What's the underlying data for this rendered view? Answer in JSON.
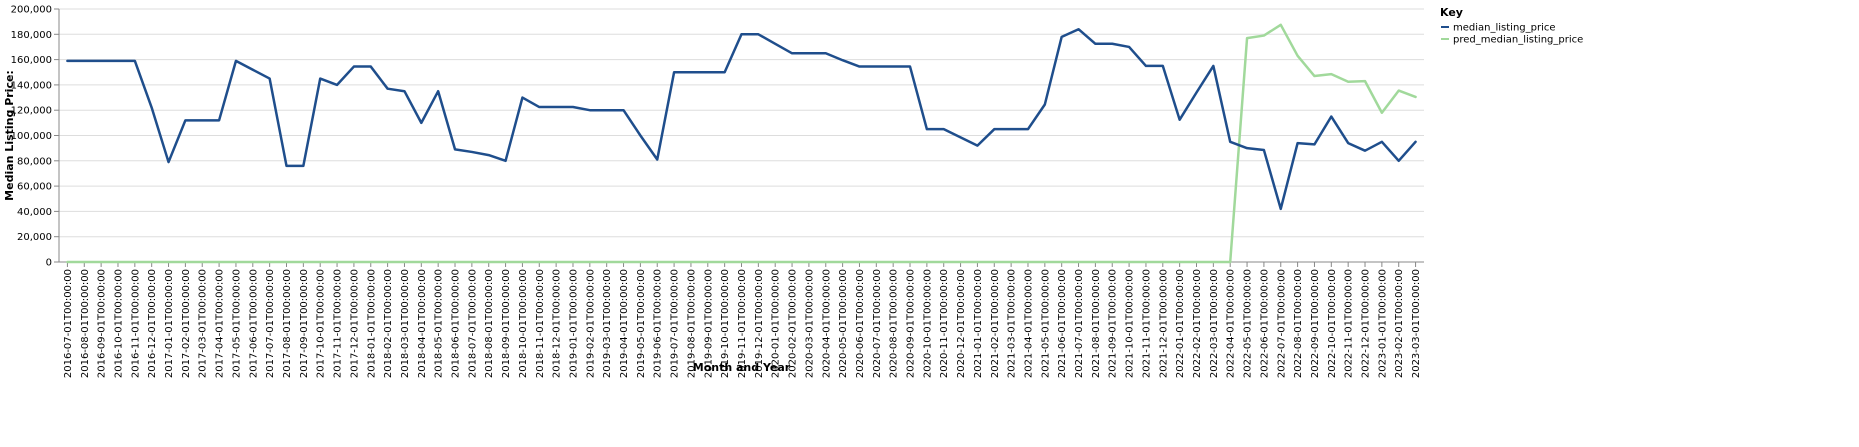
{
  "chart_data": {
    "type": "line",
    "xlabel": "Month and Year",
    "ylabel": "Median Listing Price:",
    "ylim": [
      0,
      200000
    ],
    "yticks": [
      0,
      20000,
      40000,
      60000,
      80000,
      100000,
      120000,
      140000,
      160000,
      180000,
      200000
    ],
    "ytick_labels": [
      "0",
      "20,000",
      "40,000",
      "60,000",
      "80,000",
      "100,000",
      "120,000",
      "140,000",
      "160,000",
      "180,000",
      "200,000"
    ],
    "grid": true,
    "legend": {
      "title": "Key",
      "position": "top-right"
    },
    "x": [
      "2016-07-01T00:00:00",
      "2016-08-01T00:00:00",
      "2016-09-01T00:00:00",
      "2016-10-01T00:00:00",
      "2016-11-01T00:00:00",
      "2016-12-01T00:00:00",
      "2017-01-01T00:00:00",
      "2017-02-01T00:00:00",
      "2017-03-01T00:00:00",
      "2017-04-01T00:00:00",
      "2017-05-01T00:00:00",
      "2017-06-01T00:00:00",
      "2017-07-01T00:00:00",
      "2017-08-01T00:00:00",
      "2017-09-01T00:00:00",
      "2017-10-01T00:00:00",
      "2017-11-01T00:00:00",
      "2017-12-01T00:00:00",
      "2018-01-01T00:00:00",
      "2018-02-01T00:00:00",
      "2018-03-01T00:00:00",
      "2018-04-01T00:00:00",
      "2018-05-01T00:00:00",
      "2018-06-01T00:00:00",
      "2018-07-01T00:00:00",
      "2018-08-01T00:00:00",
      "2018-09-01T00:00:00",
      "2018-10-01T00:00:00",
      "2018-11-01T00:00:00",
      "2018-12-01T00:00:00",
      "2019-01-01T00:00:00",
      "2019-02-01T00:00:00",
      "2019-03-01T00:00:00",
      "2019-04-01T00:00:00",
      "2019-05-01T00:00:00",
      "2019-06-01T00:00:00",
      "2019-07-01T00:00:00",
      "2019-08-01T00:00:00",
      "2019-09-01T00:00:00",
      "2019-10-01T00:00:00",
      "2019-11-01T00:00:00",
      "2019-12-01T00:00:00",
      "2020-01-01T00:00:00",
      "2020-02-01T00:00:00",
      "2020-03-01T00:00:00",
      "2020-04-01T00:00:00",
      "2020-05-01T00:00:00",
      "2020-06-01T00:00:00",
      "2020-07-01T00:00:00",
      "2020-08-01T00:00:00",
      "2020-09-01T00:00:00",
      "2020-10-01T00:00:00",
      "2020-11-01T00:00:00",
      "2020-12-01T00:00:00",
      "2021-01-01T00:00:00",
      "2021-02-01T00:00:00",
      "2021-03-01T00:00:00",
      "2021-04-01T00:00:00",
      "2021-05-01T00:00:00",
      "2021-06-01T00:00:00",
      "2021-07-01T00:00:00",
      "2021-08-01T00:00:00",
      "2021-09-01T00:00:00",
      "2021-10-01T00:00:00",
      "2021-11-01T00:00:00",
      "2021-12-01T00:00:00",
      "2022-01-01T00:00:00",
      "2022-02-01T00:00:00",
      "2022-03-01T00:00:00",
      "2022-04-01T00:00:00",
      "2022-05-01T00:00:00",
      "2022-06-01T00:00:00",
      "2022-07-01T00:00:00",
      "2022-08-01T00:00:00",
      "2022-09-01T00:00:00",
      "2022-10-01T00:00:00",
      "2022-11-01T00:00:00",
      "2022-12-01T00:00:00",
      "2023-01-01T00:00:00",
      "2023-02-01T00:00:00",
      "2023-03-01T00:00:00"
    ],
    "series": [
      {
        "name": "median_listing_price",
        "color": "#1f4e8c",
        "values": [
          159000,
          159000,
          159000,
          159000,
          159000,
          122000,
          79000,
          112000,
          112000,
          112000,
          159000,
          152000,
          145000,
          76000,
          76000,
          145000,
          140000,
          154500,
          154500,
          137000,
          135000,
          110000,
          135000,
          89000,
          87000,
          84500,
          80000,
          130000,
          122500,
          122500,
          122500,
          120000,
          120000,
          120000,
          100000,
          81000,
          150000,
          150000,
          150000,
          150000,
          180000,
          180000,
          172500,
          165000,
          165000,
          165000,
          159500,
          154500,
          154500,
          154500,
          154500,
          105000,
          105000,
          98500,
          92000,
          105000,
          105000,
          105000,
          124500,
          178000,
          184000,
          172500,
          172500,
          170000,
          155000,
          155000,
          112500,
          134000,
          155000,
          95000,
          90000,
          88500,
          42000,
          94000,
          93000,
          115000,
          94000,
          88000,
          95000,
          80000,
          95000
        ]
      },
      {
        "name": "pred_median_listing_price",
        "color": "#a1d99b",
        "values": [
          0,
          0,
          0,
          0,
          0,
          0,
          0,
          0,
          0,
          0,
          0,
          0,
          0,
          0,
          0,
          0,
          0,
          0,
          0,
          0,
          0,
          0,
          0,
          0,
          0,
          0,
          0,
          0,
          0,
          0,
          0,
          0,
          0,
          0,
          0,
          0,
          0,
          0,
          0,
          0,
          0,
          0,
          0,
          0,
          0,
          0,
          0,
          0,
          0,
          0,
          0,
          0,
          0,
          0,
          0,
          0,
          0,
          0,
          0,
          0,
          0,
          0,
          0,
          0,
          0,
          0,
          0,
          0,
          0,
          0,
          177000,
          179000,
          187500,
          163000,
          147000,
          148500,
          142500,
          143000,
          118000,
          135500,
          130500
        ]
      }
    ]
  }
}
